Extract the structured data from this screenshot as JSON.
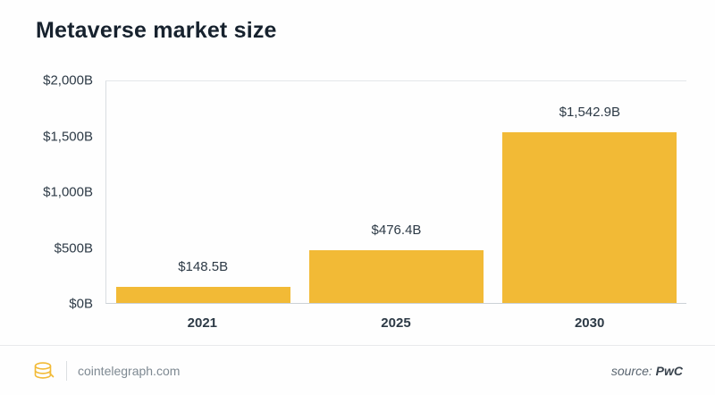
{
  "title": "Metaverse market size",
  "chart_data": {
    "type": "bar",
    "title": "Metaverse market size",
    "categories": [
      "2021",
      "2025",
      "2030"
    ],
    "values": [
      148.5,
      476.4,
      1542.9
    ],
    "value_labels": [
      "$148.5B",
      "$476.4B",
      "$1,542.9B"
    ],
    "y_ticks": [
      "$2,000B",
      "$1,500B",
      "$1,000B",
      "$500B",
      "$0B"
    ],
    "ylim": [
      0,
      2000
    ],
    "ylabel": "",
    "xlabel": "",
    "legend": "none",
    "grid": "top-line-only",
    "bar_color": "#f2ba36"
  },
  "footer": {
    "brand": "cointelegraph.com",
    "logo_icon": "cointelegraph-coins-icon",
    "source_prefix": "source: ",
    "source_name": "PwC"
  },
  "colors": {
    "bar": "#f2ba36",
    "title_text": "#17222e",
    "axis_text": "#2d3a46",
    "background": "#fefefe"
  }
}
